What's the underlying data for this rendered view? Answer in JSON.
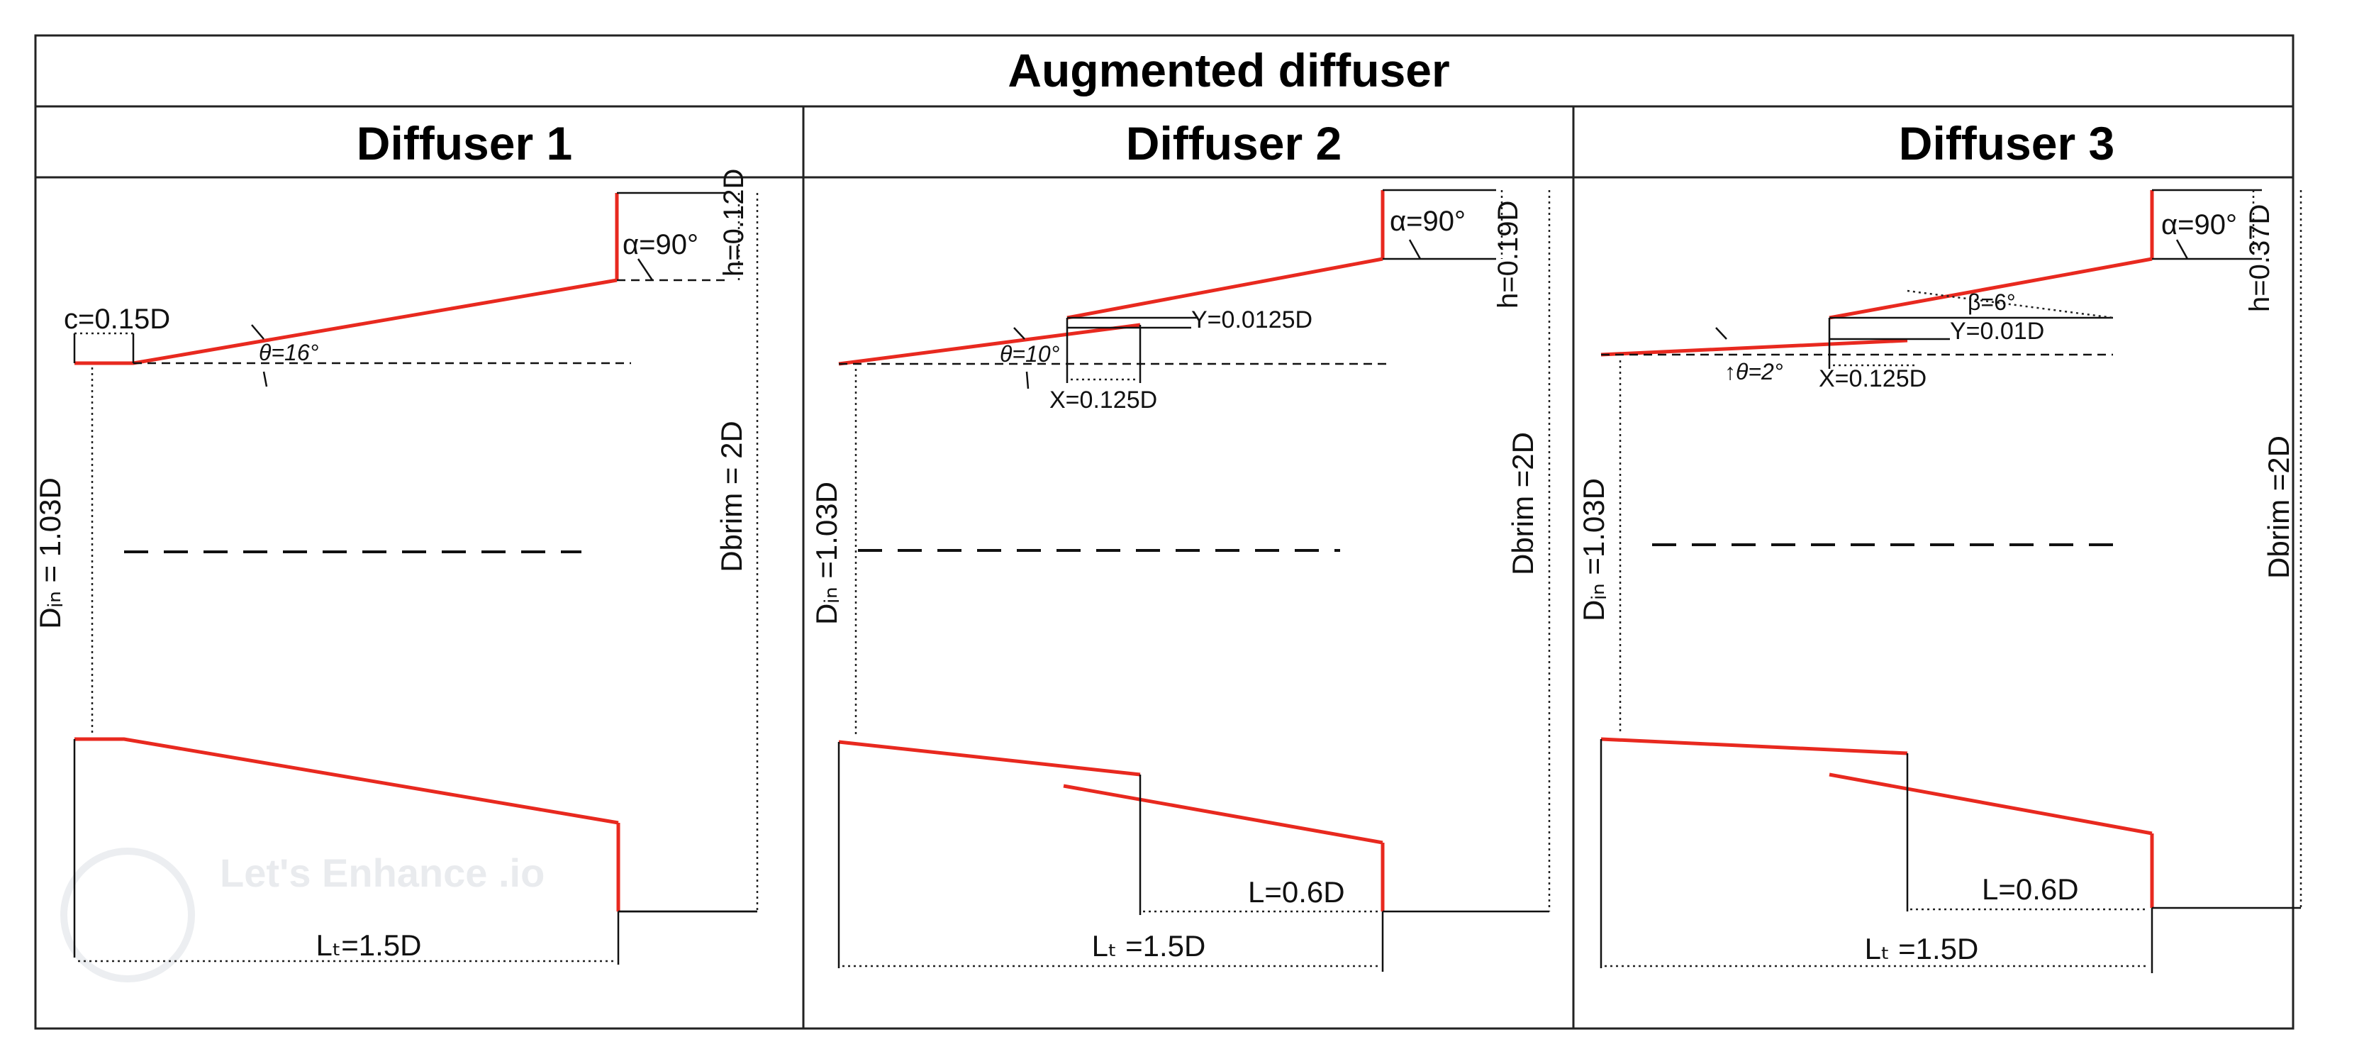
{
  "title": "Augmented diffuser",
  "colors": {
    "profile": "#e8291f",
    "lines": "#111111",
    "background": "#ffffff"
  },
  "watermark": "Let's Enhance .io",
  "panels": [
    {
      "heading": "Diffuser 1",
      "labels": {
        "c": "c=0.15D",
        "theta": "θ=16°",
        "alpha": "α=90°",
        "h": "h=0.12D",
        "din": "Dᵢₙ = 1.03D",
        "dbrim": "Dbrim = 2D",
        "lt": "Lₜ=1.5D"
      }
    },
    {
      "heading": "Diffuser 2",
      "labels": {
        "theta": "θ=10°",
        "y": "Y=0.0125D",
        "x": "X=0.125D",
        "alpha": "α=90°",
        "h": "h=0.19D",
        "din": "Dᵢₙ =1.03D",
        "dbrim": "Dbrim =2D",
        "l": "L=0.6D",
        "lt": "Lₜ =1.5D"
      }
    },
    {
      "heading": "Diffuser 3",
      "labels": {
        "theta": "↑θ=2°",
        "beta": "β=6°",
        "y": "Y=0.01D",
        "x": "X=0.125D",
        "alpha": "α=90°",
        "h": "h=0.37D",
        "din": "Dᵢₙ =1.03D",
        "dbrim": "Dbrim =2D",
        "l": "L=0.6D",
        "lt": "Lₜ =1.5D"
      }
    }
  ]
}
